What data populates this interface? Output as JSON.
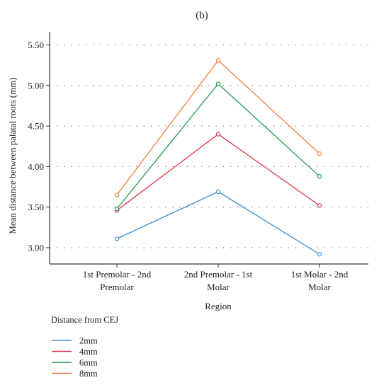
{
  "chart_data": {
    "type": "line",
    "panel_label": "(b)",
    "xlabel": "Region",
    "ylabel": "Mean distance between palatal roots (mm)",
    "categories": [
      [
        "1st Premolar - 2nd",
        "Premolar"
      ],
      [
        "2nd Premolar - 1st",
        "Molar"
      ],
      [
        "1st Molar - 2nd",
        "Molar"
      ]
    ],
    "ylim": [
      2.8,
      5.65
    ],
    "yticks": [
      "3.00",
      "3.50",
      "4.00",
      "4.50",
      "5.00",
      "5.50"
    ],
    "grid": "horizontal-dotted",
    "legend_title": "Distance from CEJ",
    "legend_position": "bottom-left",
    "series": [
      {
        "name": "2mm",
        "color": "#3a8fd0",
        "values": [
          3.11,
          3.69,
          2.92
        ]
      },
      {
        "name": "4mm",
        "color": "#e0364d",
        "values": [
          3.46,
          4.4,
          3.52
        ]
      },
      {
        "name": "6mm",
        "color": "#1e9a4c",
        "values": [
          3.48,
          5.02,
          3.88
        ]
      },
      {
        "name": "8mm",
        "color": "#f07d3c",
        "values": [
          3.65,
          5.31,
          4.16
        ]
      }
    ]
  }
}
